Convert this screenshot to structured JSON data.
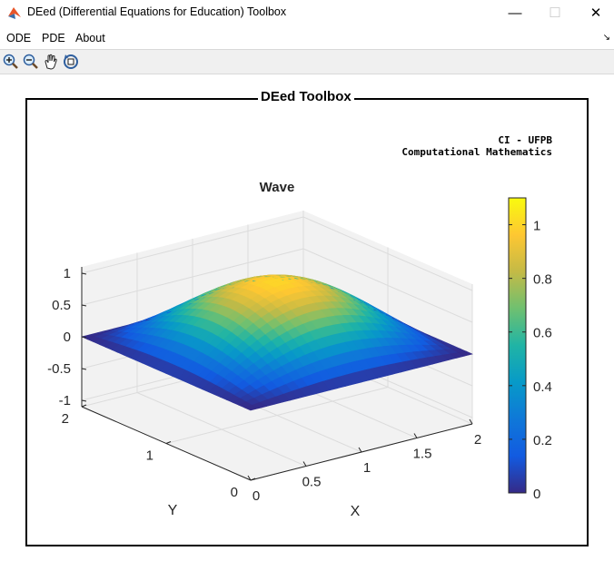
{
  "window": {
    "title": "DEed (Differential Equations for Education) Toolbox",
    "icon": "matlab-icon",
    "controls": {
      "minimize": "—",
      "maximize": "☐",
      "close": "✕"
    }
  },
  "menu": {
    "items": [
      {
        "label": "ODE"
      },
      {
        "label": "PDE"
      },
      {
        "label": "About"
      }
    ],
    "overflow": "↘"
  },
  "toolbar": {
    "tools": [
      "zoom-in-icon",
      "zoom-out-icon",
      "pan-hand-icon",
      "rotate-3d-icon"
    ]
  },
  "panel": {
    "title": "DEed Toolbox",
    "credit_line1": "CI - UFPB",
    "credit_line2": "Computational Mathematics"
  },
  "chart_data": {
    "type": "surface",
    "title": "Wave",
    "xlabel": "X",
    "ylabel": "Y",
    "zlabel": "",
    "xlim": [
      0,
      2
    ],
    "ylim": [
      0,
      2
    ],
    "zlim": [
      -1.1,
      1.1
    ],
    "x_ticks": [
      "0",
      "0.5",
      "1",
      "1.5",
      "2"
    ],
    "y_ticks": [
      "0",
      "1",
      "2"
    ],
    "z_ticks": [
      "-1",
      "-0.5",
      "0",
      "0.5",
      "1"
    ],
    "function": "z = sin(pi*x/2) * sin(pi*y/2)",
    "peak": 1,
    "colormap": "parula",
    "colorbar": {
      "min": 0,
      "max": 1.1,
      "ticks": [
        "0",
        "0.2",
        "0.4",
        "0.6",
        "0.8",
        "1"
      ],
      "placement": "right"
    },
    "grid": true,
    "view": "3d"
  }
}
